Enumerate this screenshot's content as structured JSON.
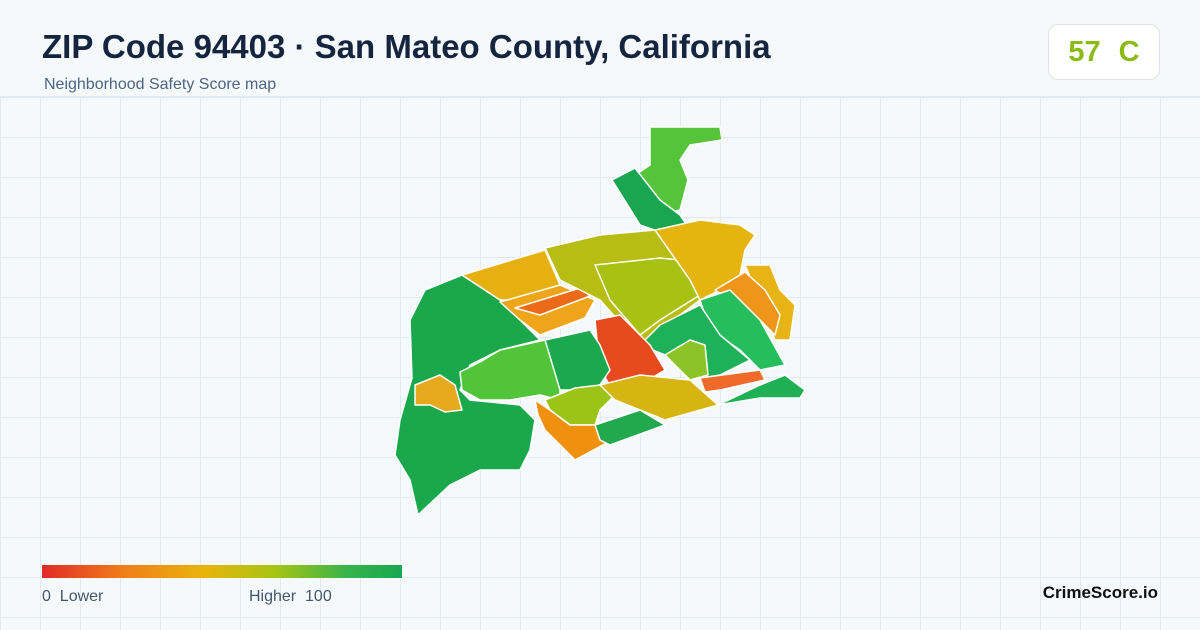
{
  "header": {
    "title": "ZIP Code 94403 · San Mateo County, California",
    "subtitle": "Neighborhood Safety Score map"
  },
  "score": {
    "value": 57,
    "grade": "C"
  },
  "legend": {
    "min": 0,
    "min_label": "Lower",
    "max_label": "Higher",
    "max": 100
  },
  "brand": "CrimeScore.io"
}
